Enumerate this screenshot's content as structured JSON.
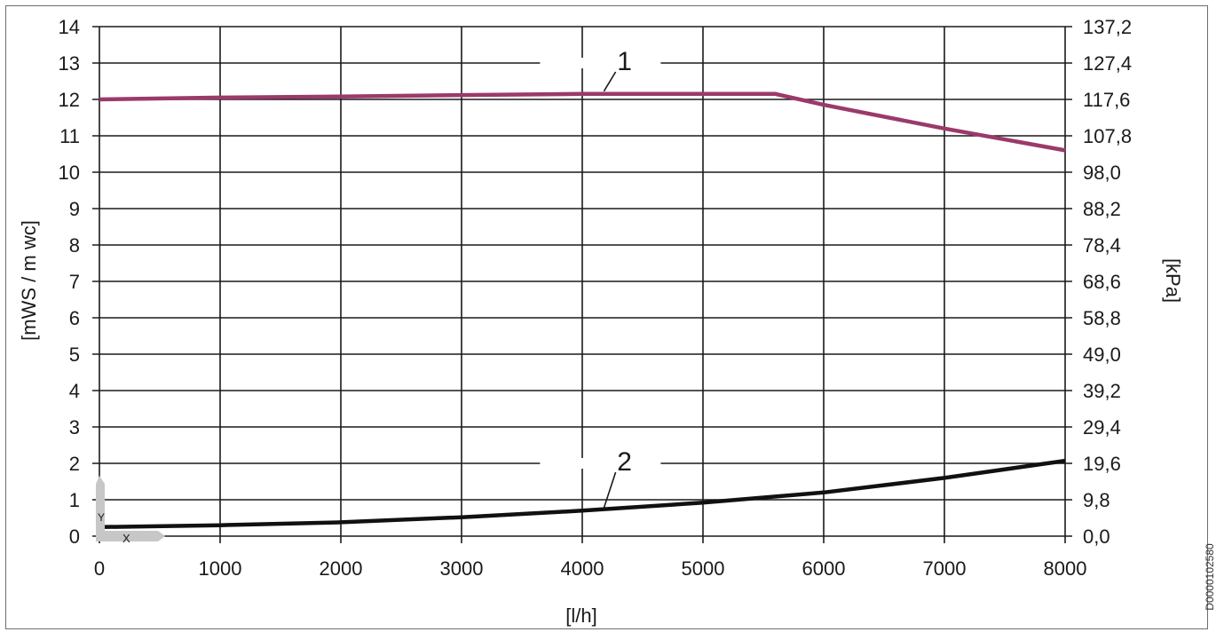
{
  "chart_data": {
    "type": "line",
    "x_label": "[l/h]",
    "y_left_label": "[mWS / m wc]",
    "y_right_label": "[kPa]",
    "xlim": [
      0,
      8000
    ],
    "ylim": [
      0,
      14
    ],
    "x_ticks": [
      0,
      1000,
      2000,
      3000,
      4000,
      5000,
      6000,
      7000,
      8000
    ],
    "y_left_ticks": [
      0,
      1,
      2,
      3,
      4,
      5,
      6,
      7,
      8,
      9,
      10,
      11,
      12,
      13,
      14
    ],
    "y_right_ticks": [
      "0,0",
      "9,8",
      "19,6",
      "29,4",
      "39,2",
      "49,0",
      "58,8",
      "68,6",
      "78,4",
      "88,2",
      "98,0",
      "107,8",
      "117,6",
      "127,4",
      "137,2"
    ],
    "grid": true,
    "series": [
      {
        "name": "1",
        "color": "#9b3a6a",
        "x": [
          0,
          1000,
          2000,
          3000,
          4000,
          5000,
          5600,
          6000,
          7000,
          8000
        ],
        "y": [
          12.0,
          12.05,
          12.08,
          12.12,
          12.15,
          12.15,
          12.15,
          11.85,
          11.2,
          10.6
        ]
      },
      {
        "name": "2",
        "color": "#111111",
        "x": [
          0,
          1000,
          2000,
          3000,
          4000,
          5000,
          6000,
          7000,
          8000
        ],
        "y": [
          0.25,
          0.3,
          0.38,
          0.52,
          0.7,
          0.92,
          1.2,
          1.6,
          2.07
        ]
      }
    ],
    "callouts": [
      {
        "label": "1",
        "target_x": 4150,
        "target_y": 12.15
      },
      {
        "label": "2",
        "target_x": 4150,
        "target_y": 0.7
      }
    ],
    "axis_icon": {
      "x_letter": "X",
      "y_letter": "Y"
    }
  },
  "figure_code": "D0000102580"
}
